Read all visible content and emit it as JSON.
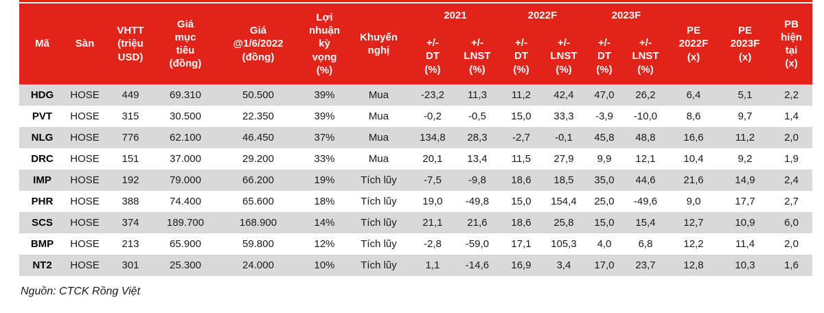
{
  "colors": {
    "header_red": "#e2231a",
    "row_alt_gray": "#d9d9d9",
    "row_white": "#ffffff",
    "text_dark": "#1a1a1a"
  },
  "table": {
    "left_headers": [
      "Mã",
      "Sàn",
      "VHTT\n(triệu\nUSD)",
      "Giá\nmục\ntiêu\n(đồng)",
      "Giá\n@1/6/2022\n(đồng)",
      "Lợi\nnhuận\nkỳ\nvọng\n(%)",
      "Khuyến\nnghị"
    ],
    "year_groups": [
      {
        "label": "2021",
        "sub": [
          "+/-\nDT\n(%)",
          "+/-\nLNST\n(%)"
        ]
      },
      {
        "label": "2022F",
        "sub": [
          "+/-\nDT\n(%)",
          "+/-\nLNST\n(%)"
        ]
      },
      {
        "label": "2023F",
        "sub": [
          "+/-\nDT\n(%)",
          "+/-\nLNST\n(%)"
        ]
      }
    ],
    "right_headers": [
      "PE\n2022F\n(x)",
      "PE\n2023F\n(x)",
      "PB\nhiện\ntại\n(x)"
    ],
    "rows": [
      [
        "HDG",
        "HOSE",
        "449",
        "69.310",
        "50.500",
        "39%",
        "Mua",
        "-23,2",
        "11,3",
        "11,2",
        "42,4",
        "47,0",
        "26,2",
        "6,4",
        "5,1",
        "2,2"
      ],
      [
        "PVT",
        "HOSE",
        "315",
        "30.500",
        "22.350",
        "39%",
        "Mua",
        "-0,2",
        "-0,5",
        "15,0",
        "33,3",
        "-3,9",
        "-10,0",
        "8,6",
        "9,7",
        "1,4"
      ],
      [
        "NLG",
        "HOSE",
        "776",
        "62.100",
        "46.450",
        "37%",
        "Mua",
        "134,8",
        "28,3",
        "-2,7",
        "-0,1",
        "45,8",
        "48,8",
        "16,6",
        "11,2",
        "2,0"
      ],
      [
        "DRC",
        "HOSE",
        "151",
        "37.000",
        "29.200",
        "33%",
        "Mua",
        "20,1",
        "13,4",
        "11,5",
        "27,9",
        "9,9",
        "12,1",
        "10,4",
        "9,2",
        "1,9"
      ],
      [
        "IMP",
        "HOSE",
        "192",
        "79.000",
        "66.200",
        "19%",
        "Tích lũy",
        "-7,5",
        "-9,8",
        "18,6",
        "18,5",
        "35,0",
        "44,6",
        "21,6",
        "14,9",
        "2,4"
      ],
      [
        "PHR",
        "HOSE",
        "388",
        "74.400",
        "65.600",
        "18%",
        "Tích lũy",
        "19,0",
        "-49,8",
        "15,0",
        "154,4",
        "25,0",
        "-49,6",
        "9,0",
        "17,7",
        "2,7"
      ],
      [
        "SCS",
        "HOSE",
        "374",
        "189.700",
        "168.900",
        "14%",
        "Tích lũy",
        "21,1",
        "21,6",
        "18,6",
        "25,8",
        "15,0",
        "15,4",
        "12,7",
        "10,9",
        "6,0"
      ],
      [
        "BMP",
        "HOSE",
        "213",
        "65.900",
        "59.800",
        "12%",
        "Tích lũy",
        "-2,8",
        "-59,0",
        "17,1",
        "105,3",
        "4,0",
        "6,8",
        "12,2",
        "11,4",
        "2,0"
      ],
      [
        "NT2",
        "HOSE",
        "301",
        "25.300",
        "24.000",
        "10%",
        "Tích lũy",
        "1,1",
        "-14,6",
        "16,9",
        "3,4",
        "17,0",
        "23,7",
        "12,8",
        "10,3",
        "1,6"
      ]
    ]
  },
  "footer": {
    "source_label": "Nguồn: CTCK Rồng Việt"
  }
}
